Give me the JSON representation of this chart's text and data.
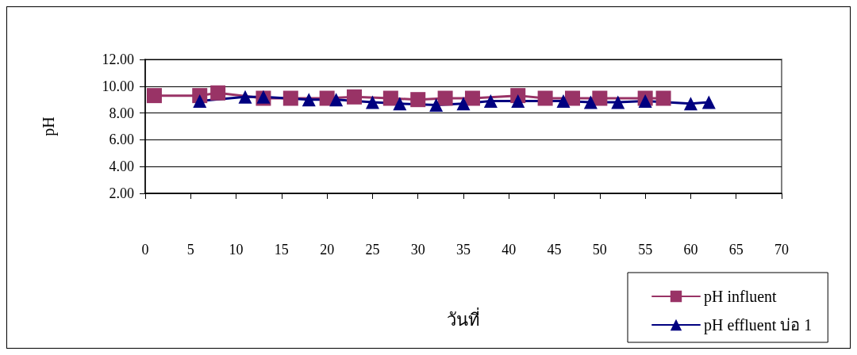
{
  "chart_data": {
    "type": "line",
    "xlabel": "วันที่",
    "ylabel": "pH",
    "xlim": [
      0,
      70
    ],
    "xticks": [
      0,
      5,
      10,
      15,
      20,
      25,
      30,
      35,
      40,
      45,
      50,
      55,
      60,
      65,
      70
    ],
    "ylim": [
      2,
      12
    ],
    "yticks": [
      {
        "value": 2,
        "label": "2.00"
      },
      {
        "value": 4,
        "label": "4.00"
      },
      {
        "value": 6,
        "label": "6.00"
      },
      {
        "value": 8,
        "label": "8.00"
      },
      {
        "value": 10,
        "label": "10.00"
      },
      {
        "value": 12,
        "label": "12.00"
      }
    ],
    "grid": "y",
    "legend": "bottom right",
    "line_style": "solid",
    "series": [
      {
        "name": "pH influent",
        "color": "#993366",
        "marker": "square",
        "x": [
          1,
          6,
          8,
          13,
          16,
          20,
          23,
          27,
          30,
          33,
          36,
          41,
          44,
          47,
          50,
          55,
          57
        ],
        "values": [
          9.3,
          9.3,
          9.5,
          9.1,
          9.1,
          9.1,
          9.2,
          9.1,
          9.0,
          9.1,
          9.1,
          9.3,
          9.1,
          9.1,
          9.1,
          9.1,
          9.1
        ]
      },
      {
        "name": "pH effluent บ่อ 1",
        "color": "#000080",
        "marker": "triangle",
        "x": [
          6,
          11,
          13,
          18,
          21,
          25,
          28,
          32,
          35,
          38,
          41,
          46,
          49,
          52,
          55,
          60,
          62
        ],
        "values": [
          8.9,
          9.2,
          9.2,
          9.0,
          9.0,
          8.8,
          8.7,
          8.6,
          8.7,
          8.9,
          8.9,
          8.9,
          8.8,
          8.8,
          8.9,
          8.7,
          8.8
        ]
      }
    ]
  }
}
